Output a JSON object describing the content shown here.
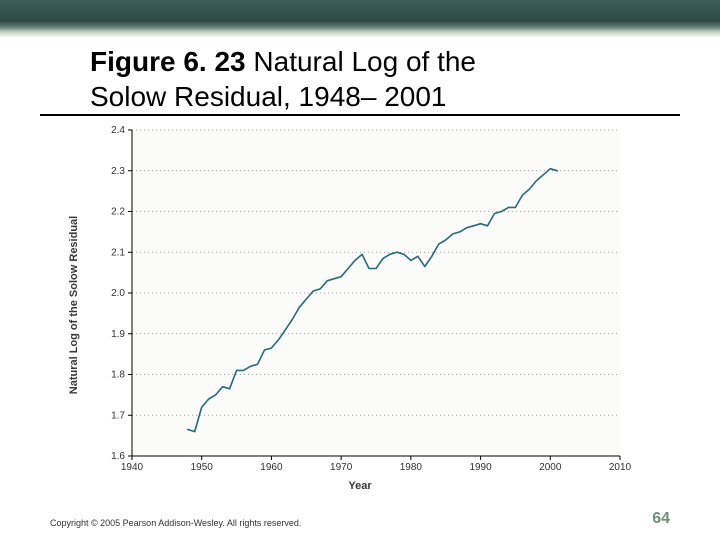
{
  "banner": {
    "gradient_top": "#3e5f5a",
    "gradient_mid": "#2d4a45",
    "gradient_low": "#c8d4c5"
  },
  "title": {
    "bold": "Figure 6. 23",
    "rest1": " Natural Log of the",
    "line2": "Solow Residual, 1948– 2001",
    "fontsize": 28
  },
  "chart": {
    "type": "line",
    "xlabel": "Year",
    "ylabel": "Natural Log of the Solow Residual",
    "label_fontsize": 11,
    "xlim": [
      1940,
      2010
    ],
    "ylim": [
      1.6,
      2.4
    ],
    "xtick_step": 10,
    "ytick_step": 0.1,
    "xticks": [
      1940,
      1950,
      1960,
      1970,
      1980,
      1990,
      2000,
      2010
    ],
    "yticks": [
      1.6,
      1.7,
      1.8,
      1.9,
      2.0,
      2.1,
      2.2,
      2.3,
      2.4
    ],
    "grid_color": "#888888",
    "grid_dash": "1 3",
    "axis_color": "#000000",
    "line_color": "#2a6a7a",
    "line_width": 1.6,
    "background_color": "#fbfbf9",
    "tick_fontsize": 10,
    "series": {
      "x": [
        1948,
        1949,
        1950,
        1951,
        1952,
        1953,
        1954,
        1955,
        1956,
        1957,
        1958,
        1959,
        1960,
        1961,
        1962,
        1963,
        1964,
        1965,
        1966,
        1967,
        1968,
        1969,
        1970,
        1971,
        1972,
        1973,
        1974,
        1975,
        1976,
        1977,
        1978,
        1979,
        1980,
        1981,
        1982,
        1983,
        1984,
        1985,
        1986,
        1987,
        1988,
        1989,
        1990,
        1991,
        1992,
        1993,
        1994,
        1995,
        1996,
        1997,
        1998,
        1999,
        2000,
        2001
      ],
      "y": [
        1.665,
        1.66,
        1.72,
        1.74,
        1.75,
        1.77,
        1.765,
        1.81,
        1.81,
        1.82,
        1.825,
        1.86,
        1.865,
        1.885,
        1.91,
        1.935,
        1.965,
        1.985,
        2.005,
        2.01,
        2.03,
        2.035,
        2.04,
        2.06,
        2.08,
        2.095,
        2.06,
        2.06,
        2.085,
        2.095,
        2.1,
        2.095,
        2.08,
        2.09,
        2.065,
        2.09,
        2.12,
        2.13,
        2.145,
        2.15,
        2.16,
        2.165,
        2.17,
        2.165,
        2.195,
        2.2,
        2.21,
        2.21,
        2.24,
        2.255,
        2.275,
        2.29,
        2.305,
        2.3
      ]
    }
  },
  "footer": {
    "copyright": "Copyright © 2005 Pearson Addison-Wesley. All rights reserved.",
    "page": "64",
    "page_color": "#6f8f7a"
  }
}
